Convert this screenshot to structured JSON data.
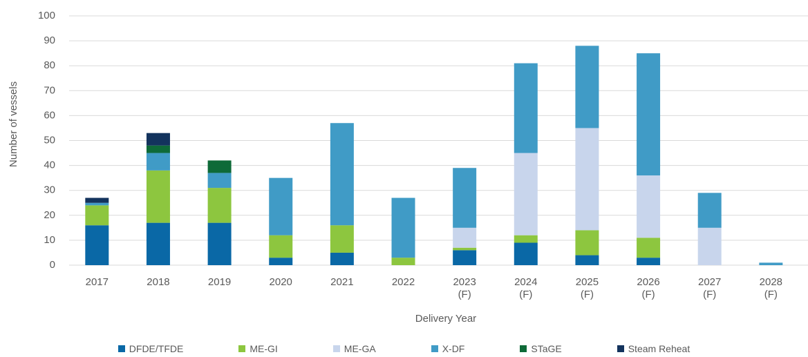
{
  "chart_data": {
    "type": "bar",
    "stacked": true,
    "categories": [
      "2017",
      "2018",
      "2019",
      "2020",
      "2021",
      "2022",
      "2023\n(F)",
      "2024\n(F)",
      "2025\n(F)",
      "2026\n(F)",
      "2027\n(F)",
      "2028\n(F)"
    ],
    "series": [
      {
        "name": "DFDE/TFDE",
        "color": "#0a68a6",
        "values": [
          16,
          17,
          17,
          3,
          5,
          0,
          6,
          9,
          4,
          3,
          0,
          0
        ]
      },
      {
        "name": "ME-GI",
        "color": "#8dc63f",
        "values": [
          8,
          21,
          14,
          9,
          11,
          3,
          1,
          3,
          10,
          8,
          0,
          0
        ]
      },
      {
        "name": "ME-GA",
        "color": "#c8d5ec",
        "values": [
          0,
          0,
          0,
          0,
          0,
          0,
          8,
          33,
          41,
          25,
          15,
          0
        ]
      },
      {
        "name": "X-DF",
        "color": "#409bc6",
        "values": [
          1,
          7,
          6,
          23,
          41,
          24,
          24,
          36,
          33,
          49,
          14,
          1
        ]
      },
      {
        "name": "STaGE",
        "color": "#0e6a38",
        "values": [
          0,
          3,
          5,
          0,
          0,
          0,
          0,
          0,
          0,
          0,
          0,
          0
        ]
      },
      {
        "name": "Steam Reheat",
        "color": "#13335d",
        "values": [
          2,
          5,
          0,
          0,
          0,
          0,
          0,
          0,
          0,
          0,
          0,
          0
        ]
      }
    ],
    "xlabel": "Delivery Year",
    "ylabel": "Number of vessels",
    "ylim": [
      0,
      100
    ],
    "yticks": [
      0,
      10,
      20,
      30,
      40,
      50,
      60,
      70,
      80,
      90,
      100
    ],
    "grid": true,
    "legend": "bottom"
  }
}
